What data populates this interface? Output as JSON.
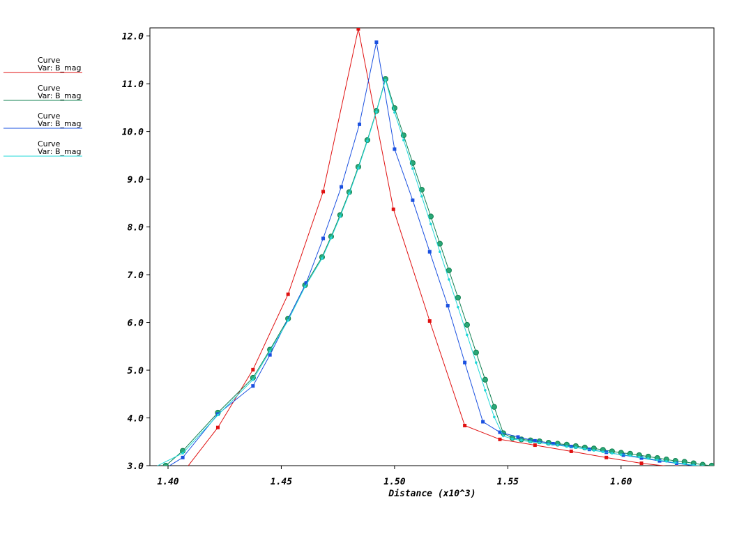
{
  "chart_data": {
    "type": "line",
    "title": "",
    "xlabel": "Distance (x10^3)",
    "ylabel": "",
    "xlim": [
      1.392,
      1.641
    ],
    "ylim": [
      3.0,
      12.17
    ],
    "x_ticks": [
      "1.40",
      "1.45",
      "1.50",
      "1.55",
      "1.60"
    ],
    "x_tick_values": [
      1.4,
      1.45,
      1.5,
      1.55,
      1.6
    ],
    "y_ticks": [
      "3.0",
      "4.0",
      "5.0",
      "6.0",
      "7.0",
      "8.0",
      "9.0",
      "10.0",
      "11.0",
      "12.0"
    ],
    "y_tick_values": [
      3.0,
      4.0,
      5.0,
      6.0,
      7.0,
      8.0,
      9.0,
      10.0,
      11.0,
      12.0
    ],
    "grid": false,
    "legend_position": "left",
    "series": [
      {
        "legend_title": "Curve",
        "legend_var": "Var: B_mag",
        "color": "#e01010",
        "marker": "square",
        "points": [
          [
            1.4065,
            2.85
          ],
          [
            1.422,
            3.8
          ],
          [
            1.4375,
            5.01
          ],
          [
            1.453,
            6.59
          ],
          [
            1.4685,
            8.74
          ],
          [
            1.484,
            12.15
          ],
          [
            1.4995,
            8.37
          ],
          [
            1.5155,
            6.03
          ],
          [
            1.531,
            3.84
          ],
          [
            1.5465,
            3.55
          ],
          [
            1.562,
            3.43
          ],
          [
            1.578,
            3.3
          ],
          [
            1.5935,
            3.17
          ],
          [
            1.609,
            3.05
          ],
          [
            1.6245,
            2.97
          ],
          [
            1.64,
            2.9
          ]
        ]
      },
      {
        "legend_title": "Curve",
        "legend_var": "Var: B_mag",
        "color": "#108050",
        "marker": "circle",
        "points": [
          [
            1.399,
            3.0
          ],
          [
            1.4065,
            3.31
          ],
          [
            1.422,
            4.11
          ],
          [
            1.4375,
            4.84
          ],
          [
            1.445,
            5.43
          ],
          [
            1.453,
            6.08
          ],
          [
            1.4605,
            6.78
          ],
          [
            1.468,
            7.37
          ],
          [
            1.472,
            7.8
          ],
          [
            1.476,
            8.25
          ],
          [
            1.48,
            8.73
          ],
          [
            1.484,
            9.26
          ],
          [
            1.488,
            9.82
          ],
          [
            1.492,
            10.43
          ],
          [
            1.496,
            11.1
          ],
          [
            1.5,
            10.49
          ],
          [
            1.504,
            9.92
          ],
          [
            1.508,
            9.34
          ],
          [
            1.512,
            8.78
          ],
          [
            1.516,
            8.22
          ],
          [
            1.52,
            7.65
          ],
          [
            1.524,
            7.09
          ],
          [
            1.528,
            6.52
          ],
          [
            1.532,
            5.95
          ],
          [
            1.536,
            5.37
          ],
          [
            1.54,
            4.8
          ],
          [
            1.544,
            4.23
          ],
          [
            1.548,
            3.68
          ],
          [
            1.552,
            3.58
          ],
          [
            1.556,
            3.55
          ],
          [
            1.56,
            3.53
          ],
          [
            1.564,
            3.51
          ],
          [
            1.568,
            3.48
          ],
          [
            1.572,
            3.46
          ],
          [
            1.576,
            3.44
          ],
          [
            1.58,
            3.41
          ],
          [
            1.584,
            3.38
          ],
          [
            1.588,
            3.36
          ],
          [
            1.592,
            3.33
          ],
          [
            1.596,
            3.3
          ],
          [
            1.6,
            3.27
          ],
          [
            1.604,
            3.25
          ],
          [
            1.608,
            3.22
          ],
          [
            1.612,
            3.19
          ],
          [
            1.616,
            3.16
          ],
          [
            1.62,
            3.13
          ],
          [
            1.624,
            3.1
          ],
          [
            1.628,
            3.08
          ],
          [
            1.632,
            3.05
          ],
          [
            1.636,
            3.02
          ],
          [
            1.64,
            3.0
          ]
        ]
      },
      {
        "legend_title": "Curve",
        "legend_var": "Var: B_mag",
        "color": "#1a50e0",
        "marker": "square",
        "points": [
          [
            1.399,
            2.95
          ],
          [
            1.4065,
            3.17
          ],
          [
            1.422,
            4.08
          ],
          [
            1.4375,
            4.67
          ],
          [
            1.445,
            5.32
          ],
          [
            1.461,
            6.83
          ],
          [
            1.4685,
            7.76
          ],
          [
            1.4765,
            8.84
          ],
          [
            1.4845,
            10.15
          ],
          [
            1.492,
            11.87
          ],
          [
            1.5,
            9.63
          ],
          [
            1.508,
            8.56
          ],
          [
            1.5155,
            7.48
          ],
          [
            1.5235,
            6.35
          ],
          [
            1.531,
            5.16
          ],
          [
            1.539,
            3.92
          ],
          [
            1.5465,
            3.7
          ],
          [
            1.5545,
            3.6
          ],
          [
            1.562,
            3.52
          ],
          [
            1.57,
            3.46
          ],
          [
            1.578,
            3.4
          ],
          [
            1.586,
            3.34
          ],
          [
            1.5935,
            3.28
          ],
          [
            1.601,
            3.22
          ],
          [
            1.609,
            3.16
          ],
          [
            1.617,
            3.1
          ],
          [
            1.6245,
            3.05
          ],
          [
            1.632,
            3.0
          ],
          [
            1.64,
            2.95
          ]
        ]
      },
      {
        "legend_title": "Curve",
        "legend_var": "Var: B_mag",
        "color": "#20d8d8",
        "marker": "dot",
        "points": [
          [
            1.392,
            2.92
          ],
          [
            1.4065,
            3.26
          ],
          [
            1.422,
            4.06
          ],
          [
            1.4375,
            4.8
          ],
          [
            1.445,
            5.4
          ],
          [
            1.453,
            6.04
          ],
          [
            1.4605,
            6.75
          ],
          [
            1.468,
            7.34
          ],
          [
            1.472,
            7.77
          ],
          [
            1.476,
            8.22
          ],
          [
            1.48,
            8.7
          ],
          [
            1.484,
            9.23
          ],
          [
            1.488,
            9.8
          ],
          [
            1.492,
            10.41
          ],
          [
            1.496,
            11.08
          ],
          [
            1.5,
            10.4
          ],
          [
            1.504,
            9.82
          ],
          [
            1.508,
            9.22
          ],
          [
            1.512,
            8.64
          ],
          [
            1.516,
            8.06
          ],
          [
            1.52,
            7.48
          ],
          [
            1.524,
            6.9
          ],
          [
            1.528,
            6.32
          ],
          [
            1.532,
            5.74
          ],
          [
            1.536,
            5.16
          ],
          [
            1.54,
            4.58
          ],
          [
            1.544,
            4.02
          ],
          [
            1.548,
            3.62
          ],
          [
            1.552,
            3.56
          ],
          [
            1.556,
            3.53
          ],
          [
            1.56,
            3.5
          ],
          [
            1.564,
            3.48
          ],
          [
            1.568,
            3.45
          ],
          [
            1.572,
            3.43
          ],
          [
            1.576,
            3.4
          ],
          [
            1.58,
            3.38
          ],
          [
            1.584,
            3.35
          ],
          [
            1.588,
            3.32
          ],
          [
            1.592,
            3.29
          ],
          [
            1.596,
            3.26
          ],
          [
            1.6,
            3.23
          ],
          [
            1.604,
            3.21
          ],
          [
            1.608,
            3.18
          ],
          [
            1.612,
            3.15
          ],
          [
            1.616,
            3.12
          ],
          [
            1.62,
            3.09
          ],
          [
            1.624,
            3.06
          ],
          [
            1.628,
            3.04
          ],
          [
            1.632,
            3.01
          ],
          [
            1.636,
            2.99
          ],
          [
            1.64,
            2.97
          ]
        ]
      }
    ]
  }
}
